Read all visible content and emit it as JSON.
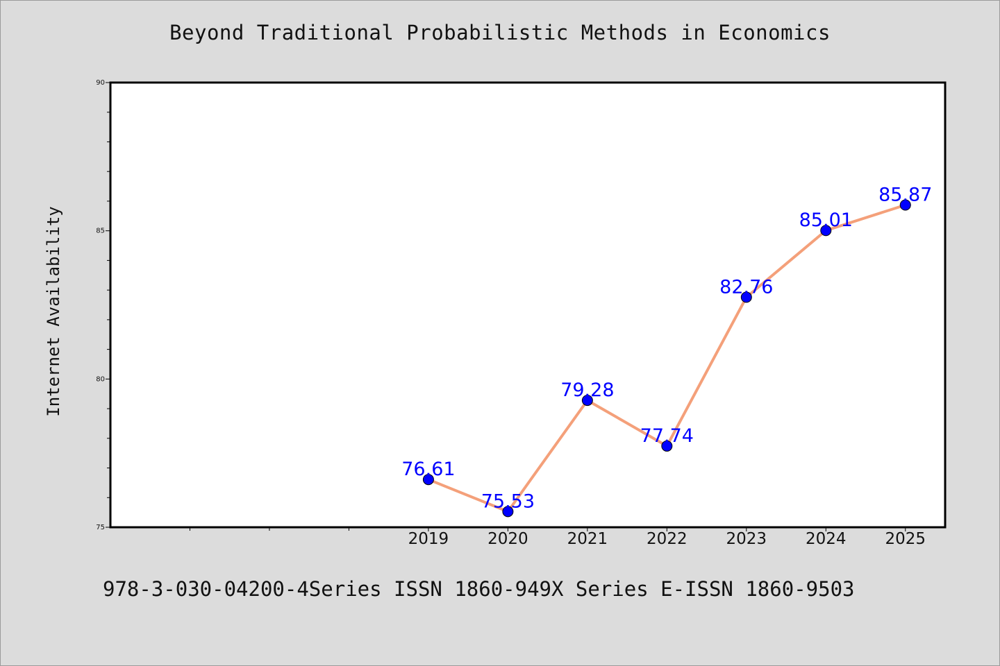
{
  "chart_data": {
    "type": "line",
    "title": "Beyond Traditional Probabilistic Methods in Economics",
    "ylabel": "Internet Availability",
    "xlabel": "",
    "x_axis_start": 2015,
    "categories": [
      "2019",
      "2020",
      "2021",
      "2022",
      "2023",
      "2024",
      "2025"
    ],
    "series": [
      {
        "values": [
          76.61,
          75.53,
          79.28,
          77.74,
          82.76,
          85.01,
          85.87
        ],
        "labels": [
          "76.61",
          "75.53",
          "79.28",
          "77.74",
          "82.76",
          "85.01",
          "85.87"
        ]
      }
    ],
    "ylim": [
      75,
      90
    ],
    "yticks": [
      "75",
      "80",
      "85",
      "90"
    ],
    "grid": false,
    "colors": {
      "line": "#f4a07a",
      "marker": "#0000ff",
      "label": "#0000ff",
      "background": "#dcdcdc",
      "plot_background": "#ffffff"
    }
  },
  "footer": {
    "text": "978-3-030-04200-4Series ISSN 1860-949X Series E-ISSN 1860-9503"
  }
}
